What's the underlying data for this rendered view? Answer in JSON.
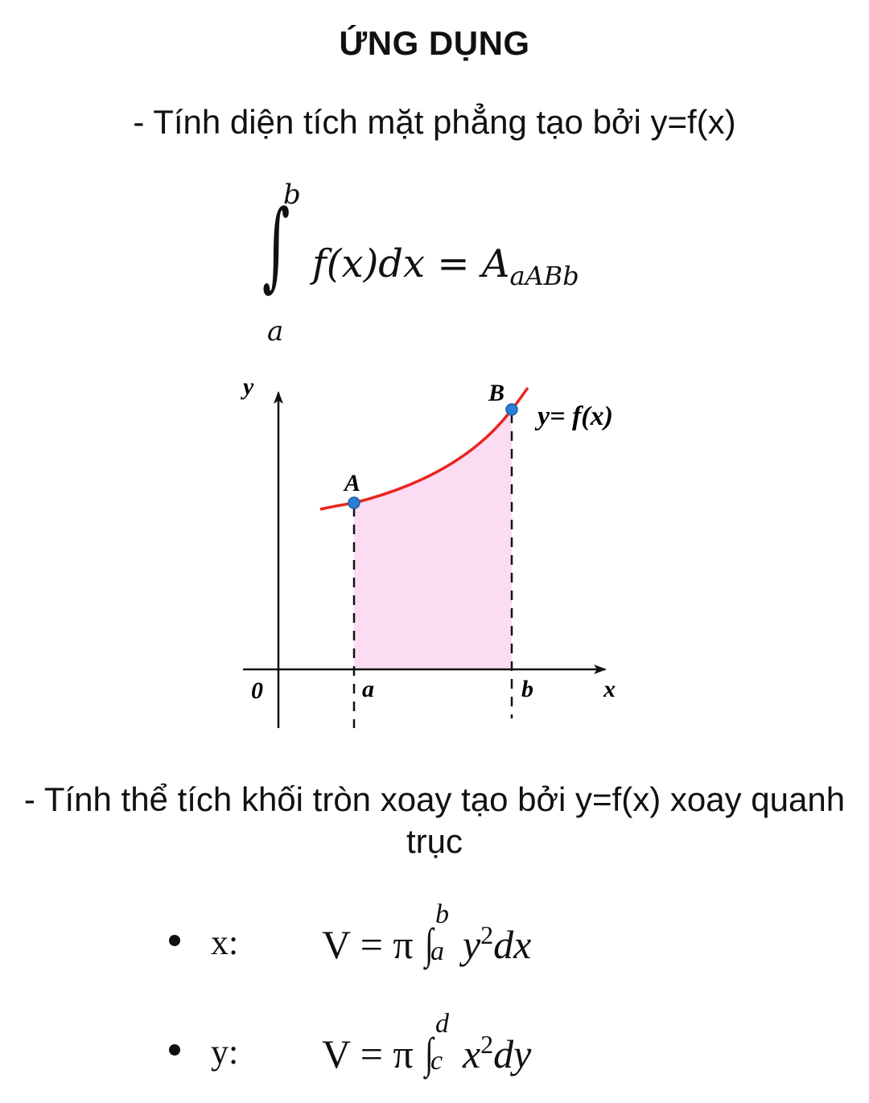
{
  "heading": "ỨNG DỤNG",
  "area_section": {
    "text": "- Tính diện tích mặt phẳng tạo bởi y=f(x)",
    "integral": {
      "upper": "b",
      "lower": "a",
      "integrand": "f(x)dx = A",
      "subscript": "aABb"
    }
  },
  "graph": {
    "y_axis_label": "y",
    "x_axis_label": "x",
    "origin_label": "0",
    "a_label": "a",
    "b_label": "b",
    "point_a_label": "A",
    "point_b_label": "B",
    "curve_label": "y= f(x)",
    "fill_color": "#fbdcf3",
    "curve_color": "#e8261f",
    "point_color": "#2a7fd4"
  },
  "volume_section": {
    "text_line1": "- Tính thể tích khối tròn xoay tạo bởi y=f(x) xoay quanh",
    "text_line2": "trục",
    "items": [
      {
        "axis": "x:",
        "lhs": "V = π",
        "upper": "b",
        "lower": "a",
        "var": "y",
        "power": "2",
        "diff": "dx"
      },
      {
        "axis": "y:",
        "lhs": "V = π",
        "upper": "d",
        "lower": "c",
        "var": "x",
        "power": "2",
        "diff": "dy"
      }
    ]
  }
}
